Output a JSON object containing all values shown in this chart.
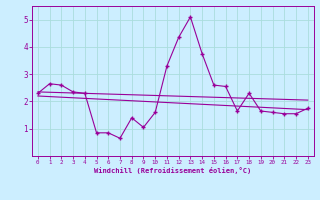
{
  "xlabel": "Windchill (Refroidissement éolien,°C)",
  "bg_color": "#cceeff",
  "grid_color": "#aadddd",
  "line_color": "#990099",
  "x_data": [
    0,
    1,
    2,
    3,
    4,
    5,
    6,
    7,
    8,
    9,
    10,
    11,
    12,
    13,
    14,
    15,
    16,
    17,
    18,
    19,
    20,
    21,
    22,
    23
  ],
  "y_line": [
    2.3,
    2.65,
    2.6,
    2.35,
    2.3,
    0.85,
    0.85,
    0.65,
    1.4,
    1.05,
    1.6,
    3.3,
    4.35,
    5.1,
    3.75,
    2.6,
    2.55,
    1.65,
    2.3,
    1.65,
    1.6,
    1.55,
    1.55,
    1.75
  ],
  "trend1_x": [
    0,
    23
  ],
  "trend1_y": [
    2.35,
    2.05
  ],
  "trend2_x": [
    0,
    23
  ],
  "trend2_y": [
    2.2,
    1.7
  ],
  "ylim": [
    0,
    5.5
  ],
  "xlim": [
    -0.5,
    23.5
  ],
  "yticks": [
    1,
    2,
    3,
    4,
    5
  ],
  "xticks": [
    0,
    1,
    2,
    3,
    4,
    5,
    6,
    7,
    8,
    9,
    10,
    11,
    12,
    13,
    14,
    15,
    16,
    17,
    18,
    19,
    20,
    21,
    22,
    23
  ]
}
